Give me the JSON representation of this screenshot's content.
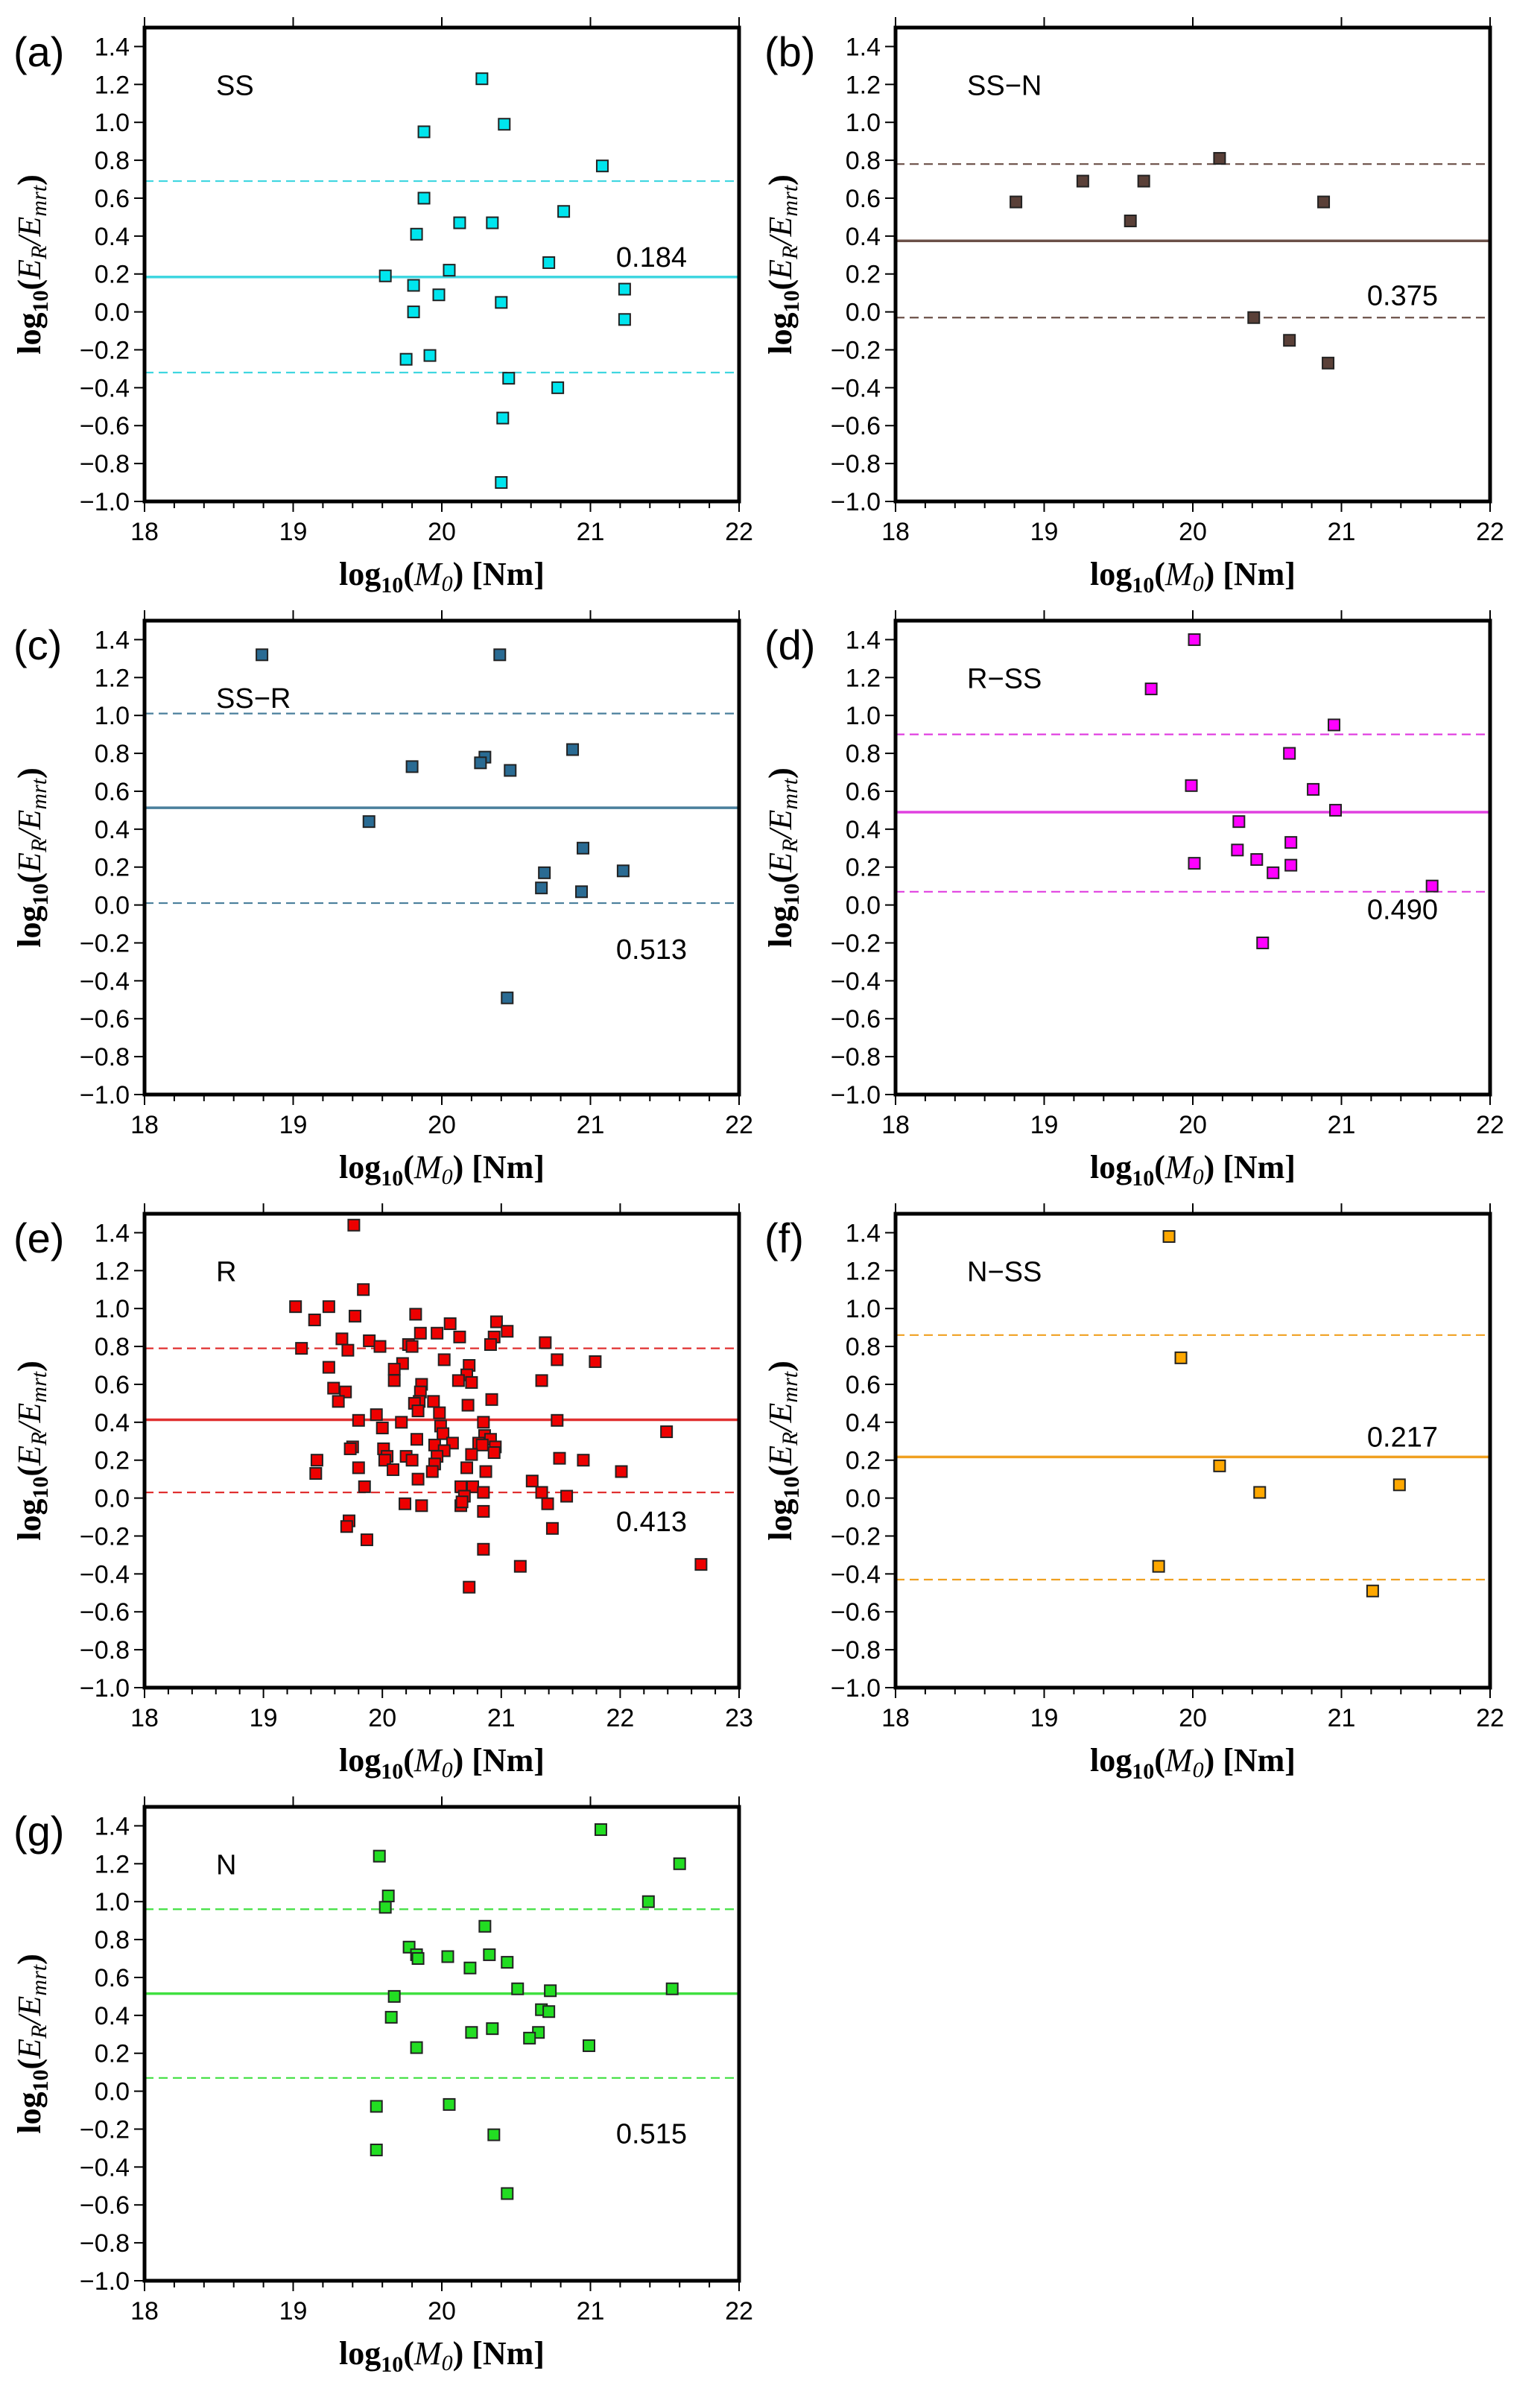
{
  "chart_data": [
    {
      "type": "scatter",
      "panel_label": "(a)",
      "tag": "SS",
      "color": "#00e5ee",
      "line_color": "#3fd6e0",
      "mean": 0.184,
      "mean_label": "0.184",
      "band": [
        -0.32,
        0.69
      ],
      "mean_label_pos": "above-right",
      "xlim": [
        18,
        22
      ],
      "ylim": [
        -1.0,
        1.5
      ],
      "xticks": [
        "18",
        "19",
        "20",
        "21",
        "22"
      ],
      "yticks": [
        "1.4",
        "1.2",
        "1.0",
        "0.8",
        "0.6",
        "0.4",
        "0.2",
        "0.0",
        "−0.2",
        "−0.4",
        "−0.6",
        "−0.8",
        "−1.0"
      ],
      "xlabel": "log10(M0) [Nm]",
      "ylabel": "log10(ER/Emrt)",
      "points": [
        [
          20.27,
          1.23
        ],
        [
          20.42,
          0.99
        ],
        [
          19.88,
          0.95
        ],
        [
          21.08,
          0.77
        ],
        [
          19.88,
          0.6
        ],
        [
          20.82,
          0.53
        ],
        [
          20.12,
          0.47
        ],
        [
          20.34,
          0.47
        ],
        [
          19.83,
          0.41
        ],
        [
          20.72,
          0.26
        ],
        [
          20.05,
          0.22
        ],
        [
          19.62,
          0.19
        ],
        [
          19.81,
          0.14
        ],
        [
          21.23,
          0.12
        ],
        [
          19.98,
          0.09
        ],
        [
          20.4,
          0.05
        ],
        [
          19.81,
          0.0
        ],
        [
          21.23,
          -0.04
        ],
        [
          19.92,
          -0.23
        ],
        [
          19.76,
          -0.25
        ],
        [
          20.45,
          -0.35
        ],
        [
          20.78,
          -0.4
        ],
        [
          20.41,
          -0.56
        ],
        [
          20.4,
          -0.9
        ]
      ]
    },
    {
      "type": "scatter",
      "panel_label": "(b)",
      "tag": "SS−N",
      "color": "#5a4038",
      "line_color": "#6b5048",
      "mean": 0.375,
      "mean_label": "0.375",
      "band": [
        -0.03,
        0.78
      ],
      "mean_label_pos": "below-right",
      "xlim": [
        18,
        22
      ],
      "ylim": [
        -1.0,
        1.5
      ],
      "xticks": [
        "18",
        "19",
        "20",
        "21",
        "22"
      ],
      "yticks": [
        "1.4",
        "1.2",
        "1.0",
        "0.8",
        "0.6",
        "0.4",
        "0.2",
        "0.0",
        "−0.2",
        "−0.4",
        "−0.6",
        "−0.8",
        "−1.0"
      ],
      "xlabel": "log10(M0) [Nm]",
      "ylabel": "log10(ER/Emrt)",
      "points": [
        [
          18.81,
          0.58
        ],
        [
          19.26,
          0.69
        ],
        [
          19.58,
          0.48
        ],
        [
          19.67,
          0.69
        ],
        [
          20.18,
          0.81
        ],
        [
          20.88,
          0.58
        ],
        [
          20.41,
          -0.03
        ],
        [
          20.65,
          -0.15
        ],
        [
          20.91,
          -0.27
        ]
      ]
    },
    {
      "type": "scatter",
      "panel_label": "(c)",
      "tag": "SS−R",
      "color": "#2a6b93",
      "line_color": "#4a7f9c",
      "mean": 0.513,
      "mean_label": "0.513",
      "band": [
        0.01,
        1.01
      ],
      "mean_label_pos": "below-right",
      "xlim": [
        18,
        22
      ],
      "ylim": [
        -1.0,
        1.5
      ],
      "xticks": [
        "18",
        "19",
        "20",
        "21",
        "22"
      ],
      "yticks": [
        "1.4",
        "1.2",
        "1.0",
        "0.8",
        "0.6",
        "0.4",
        "0.2",
        "0.0",
        "−0.2",
        "−0.4",
        "−0.6",
        "−0.8",
        "−1.0"
      ],
      "xlabel": "log10(M0) [Nm]",
      "ylabel": "log10(ER/Emrt)",
      "points": [
        [
          18.79,
          1.32
        ],
        [
          20.39,
          1.32
        ],
        [
          20.88,
          0.82
        ],
        [
          20.29,
          0.78
        ],
        [
          20.26,
          0.75
        ],
        [
          19.8,
          0.73
        ],
        [
          20.46,
          0.71
        ],
        [
          19.51,
          0.44
        ],
        [
          20.95,
          0.3
        ],
        [
          21.22,
          0.18
        ],
        [
          20.69,
          0.17
        ],
        [
          20.67,
          0.09
        ],
        [
          20.94,
          0.07
        ],
        [
          20.44,
          -0.49
        ]
      ]
    },
    {
      "type": "scatter",
      "panel_label": "(d)",
      "tag": "R−SS",
      "color": "#ff00ff",
      "line_color": "#e040e0",
      "mean": 0.49,
      "mean_label": "0.490",
      "band": [
        0.07,
        0.9
      ],
      "mean_label_pos": "below-right",
      "xlim": [
        18,
        22
      ],
      "ylim": [
        -1.0,
        1.5
      ],
      "xticks": [
        "18",
        "19",
        "20",
        "21",
        "22"
      ],
      "yticks": [
        "1.4",
        "1.2",
        "1.0",
        "0.8",
        "0.6",
        "0.4",
        "0.2",
        "0.0",
        "−0.2",
        "−0.4",
        "−0.6",
        "−0.8",
        "−1.0"
      ],
      "xlabel": "log10(M0) [Nm]",
      "ylabel": "log10(ER/Emrt)",
      "points": [
        [
          20.01,
          1.4
        ],
        [
          19.72,
          1.14
        ],
        [
          20.95,
          0.95
        ],
        [
          20.65,
          0.8
        ],
        [
          19.99,
          0.63
        ],
        [
          20.81,
          0.61
        ],
        [
          20.96,
          0.5
        ],
        [
          20.31,
          0.44
        ],
        [
          20.66,
          0.33
        ],
        [
          20.3,
          0.29
        ],
        [
          20.43,
          0.24
        ],
        [
          20.01,
          0.22
        ],
        [
          20.66,
          0.21
        ],
        [
          20.54,
          0.17
        ],
        [
          21.61,
          0.1
        ],
        [
          20.47,
          -0.2
        ]
      ]
    },
    {
      "type": "scatter",
      "panel_label": "(e)",
      "tag": "R",
      "color": "#ee0000",
      "line_color": "#e03030",
      "mean": 0.413,
      "mean_label": "0.413",
      "band": [
        0.03,
        0.79
      ],
      "mean_label_pos": "below-right",
      "xlim": [
        18,
        23
      ],
      "ylim": [
        -1.0,
        1.5
      ],
      "xticks": [
        "18",
        "19",
        "20",
        "21",
        "22",
        "23"
      ],
      "yticks": [
        "1.4",
        "1.2",
        "1.0",
        "0.8",
        "0.6",
        "0.4",
        "0.2",
        "0.0",
        "−0.2",
        "−0.4",
        "−0.6",
        "−0.8",
        "−1.0"
      ],
      "xlabel": "log10(M0) [Nm]",
      "ylabel": "log10(ER/Emrt)",
      "points": [
        [
          19.76,
          1.44
        ],
        [
          19.84,
          1.1
        ],
        [
          19.27,
          1.01
        ],
        [
          19.55,
          1.01
        ],
        [
          19.43,
          0.94
        ],
        [
          19.77,
          0.96
        ],
        [
          20.28,
          0.97
        ],
        [
          20.57,
          0.92
        ],
        [
          20.96,
          0.93
        ],
        [
          21.05,
          0.88
        ],
        [
          20.32,
          0.87
        ],
        [
          20.46,
          0.87
        ],
        [
          20.65,
          0.85
        ],
        [
          20.94,
          0.85
        ],
        [
          19.66,
          0.84
        ],
        [
          19.89,
          0.83
        ],
        [
          20.22,
          0.81
        ],
        [
          20.25,
          0.8
        ],
        [
          20.91,
          0.81
        ],
        [
          21.37,
          0.82
        ],
        [
          19.32,
          0.79
        ],
        [
          19.71,
          0.78
        ],
        [
          19.98,
          0.8
        ],
        [
          21.47,
          0.73
        ],
        [
          21.79,
          0.72
        ],
        [
          20.52,
          0.73
        ],
        [
          20.17,
          0.71
        ],
        [
          20.73,
          0.7
        ],
        [
          19.55,
          0.69
        ],
        [
          20.1,
          0.68
        ],
        [
          20.71,
          0.65
        ],
        [
          20.1,
          0.62
        ],
        [
          20.64,
          0.62
        ],
        [
          20.75,
          0.61
        ],
        [
          21.34,
          0.62
        ],
        [
          20.33,
          0.6
        ],
        [
          19.59,
          0.58
        ],
        [
          20.32,
          0.56
        ],
        [
          19.69,
          0.56
        ],
        [
          19.63,
          0.51
        ],
        [
          20.31,
          0.51
        ],
        [
          20.27,
          0.5
        ],
        [
          20.43,
          0.51
        ],
        [
          20.92,
          0.52
        ],
        [
          20.72,
          0.49
        ],
        [
          20.3,
          0.46
        ],
        [
          20.48,
          0.45
        ],
        [
          19.95,
          0.44
        ],
        [
          19.8,
          0.41
        ],
        [
          20.16,
          0.4
        ],
        [
          20.85,
          0.4
        ],
        [
          21.47,
          0.41
        ],
        [
          20.0,
          0.37
        ],
        [
          20.49,
          0.38
        ],
        [
          20.51,
          0.34
        ],
        [
          20.86,
          0.33
        ],
        [
          22.39,
          0.35
        ],
        [
          20.29,
          0.31
        ],
        [
          20.91,
          0.31
        ],
        [
          20.59,
          0.29
        ],
        [
          20.81,
          0.29
        ],
        [
          20.84,
          0.28
        ],
        [
          20.44,
          0.28
        ],
        [
          19.75,
          0.27
        ],
        [
          19.73,
          0.26
        ],
        [
          20.01,
          0.26
        ],
        [
          20.95,
          0.27
        ],
        [
          20.52,
          0.25
        ],
        [
          20.75,
          0.23
        ],
        [
          20.94,
          0.24
        ],
        [
          20.04,
          0.22
        ],
        [
          20.02,
          0.2
        ],
        [
          20.2,
          0.22
        ],
        [
          20.46,
          0.22
        ],
        [
          20.25,
          0.2
        ],
        [
          19.45,
          0.2
        ],
        [
          21.49,
          0.21
        ],
        [
          21.69,
          0.2
        ],
        [
          20.44,
          0.18
        ],
        [
          19.8,
          0.16
        ],
        [
          20.09,
          0.15
        ],
        [
          20.71,
          0.16
        ],
        [
          20.42,
          0.14
        ],
        [
          20.87,
          0.14
        ],
        [
          19.44,
          0.13
        ],
        [
          22.01,
          0.14
        ],
        [
          20.3,
          0.1
        ],
        [
          21.26,
          0.09
        ],
        [
          19.85,
          0.06
        ],
        [
          20.66,
          0.06
        ],
        [
          20.76,
          0.06
        ],
        [
          20.85,
          0.03
        ],
        [
          21.34,
          0.03
        ],
        [
          20.69,
          0.01
        ],
        [
          21.55,
          0.01
        ],
        [
          20.19,
          -0.03
        ],
        [
          20.33,
          -0.04
        ],
        [
          20.66,
          -0.04
        ],
        [
          20.67,
          -0.02
        ],
        [
          21.39,
          -0.03
        ],
        [
          20.85,
          -0.07
        ],
        [
          19.72,
          -0.12
        ],
        [
          19.7,
          -0.15
        ],
        [
          21.43,
          -0.16
        ],
        [
          19.87,
          -0.22
        ],
        [
          20.85,
          -0.27
        ],
        [
          21.16,
          -0.36
        ],
        [
          22.68,
          -0.35
        ],
        [
          20.73,
          -0.47
        ]
      ]
    },
    {
      "type": "scatter",
      "panel_label": "(f)",
      "tag": "N−SS",
      "color": "#ffa800",
      "line_color": "#f0a020",
      "mean": 0.217,
      "mean_label": "0.217",
      "band": [
        -0.43,
        0.86
      ],
      "mean_label_pos": "above-right",
      "xlim": [
        18,
        22
      ],
      "ylim": [
        -1.0,
        1.5
      ],
      "xticks": [
        "18",
        "19",
        "20",
        "21",
        "22"
      ],
      "yticks": [
        "1.4",
        "1.2",
        "1.0",
        "0.8",
        "0.6",
        "0.4",
        "0.2",
        "0.0",
        "−0.2",
        "−0.4",
        "−0.6",
        "−0.8",
        "−1.0"
      ],
      "xlabel": "log10(M0) [Nm]",
      "ylabel": "log10(ER/Emrt)",
      "points": [
        [
          19.84,
          1.38
        ],
        [
          19.92,
          0.74
        ],
        [
          20.18,
          0.17
        ],
        [
          20.45,
          0.03
        ],
        [
          21.39,
          0.07
        ],
        [
          19.77,
          -0.36
        ],
        [
          21.21,
          -0.49
        ]
      ]
    },
    {
      "type": "scatter",
      "panel_label": "(g)",
      "tag": "N",
      "color": "#22dd22",
      "line_color": "#40e040",
      "mean": 0.515,
      "mean_label": "0.515",
      "band": [
        0.07,
        0.96
      ],
      "mean_label_pos": "below-right",
      "xlim": [
        18,
        22
      ],
      "ylim": [
        -1.0,
        1.5
      ],
      "xticks": [
        "18",
        "19",
        "20",
        "21",
        "22"
      ],
      "yticks": [
        "1.4",
        "1.2",
        "1.0",
        "0.8",
        "0.6",
        "0.4",
        "0.2",
        "0.0",
        "−0.2",
        "−0.4",
        "−0.6",
        "−0.8",
        "−1.0"
      ],
      "xlabel": "log10(M0) [Nm]",
      "ylabel": "log10(ER/Emrt)",
      "points": [
        [
          21.07,
          1.38
        ],
        [
          19.58,
          1.24
        ],
        [
          21.6,
          1.2
        ],
        [
          19.64,
          1.03
        ],
        [
          21.39,
          1.0
        ],
        [
          19.62,
          0.97
        ],
        [
          20.29,
          0.87
        ],
        [
          19.78,
          0.76
        ],
        [
          19.83,
          0.72
        ],
        [
          19.84,
          0.7
        ],
        [
          20.04,
          0.71
        ],
        [
          20.32,
          0.72
        ],
        [
          20.44,
          0.68
        ],
        [
          20.19,
          0.65
        ],
        [
          20.51,
          0.54
        ],
        [
          20.73,
          0.53
        ],
        [
          21.55,
          0.54
        ],
        [
          19.68,
          0.5
        ],
        [
          20.67,
          0.43
        ],
        [
          20.72,
          0.42
        ],
        [
          19.66,
          0.39
        ],
        [
          20.34,
          0.33
        ],
        [
          20.2,
          0.31
        ],
        [
          20.65,
          0.31
        ],
        [
          20.59,
          0.28
        ],
        [
          19.83,
          0.23
        ],
        [
          20.99,
          0.24
        ],
        [
          19.56,
          -0.08
        ],
        [
          20.05,
          -0.07
        ],
        [
          20.35,
          -0.23
        ],
        [
          19.56,
          -0.31
        ],
        [
          20.44,
          -0.54
        ]
      ]
    }
  ]
}
